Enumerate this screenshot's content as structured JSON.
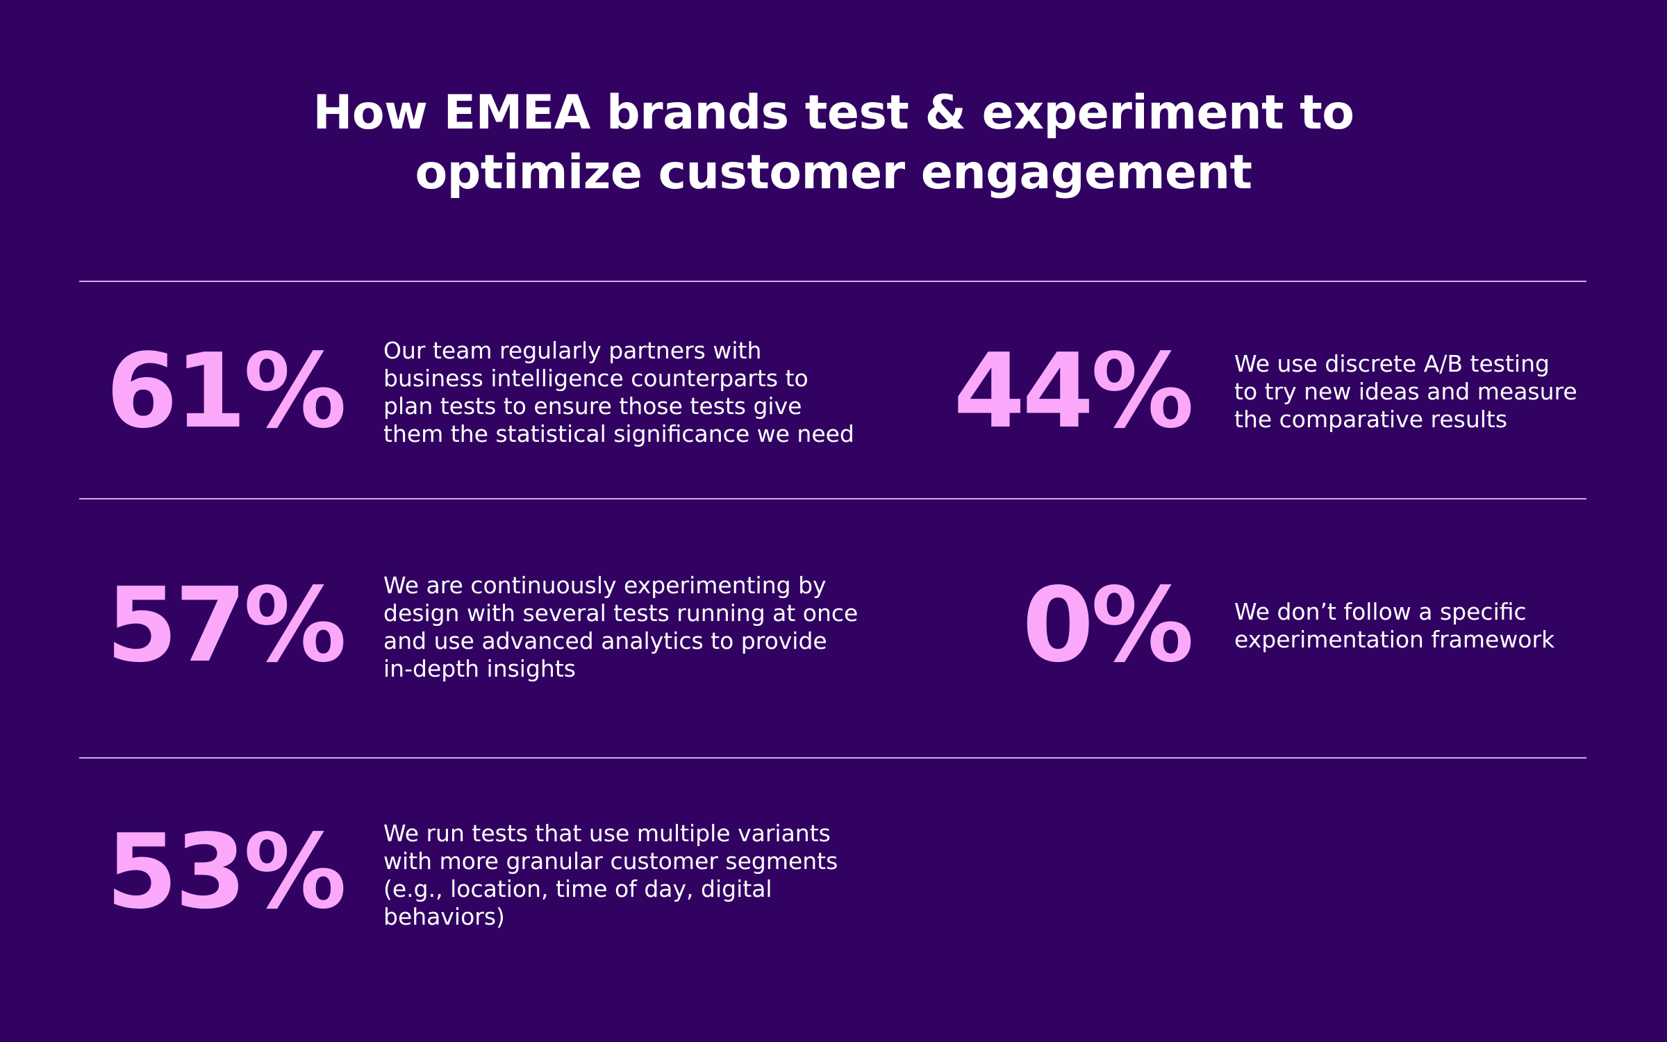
{
  "title": {
    "line1": "How EMEA brands test & experiment to",
    "line2": "optimize customer engagement"
  },
  "accent_color": "#fba8fb",
  "background_color": "#310262",
  "stats": [
    {
      "value": "61%",
      "lines": [
        "Our team regularly partners with",
        "business intelligence counterparts to",
        "plan tests to ensure those tests give",
        "them the statistical significance we need"
      ]
    },
    {
      "value": "44%",
      "lines": [
        "We use discrete A/B testing",
        "to try new ideas and measure",
        "the comparative results"
      ]
    },
    {
      "value": "57%",
      "lines": [
        "We are continuously experimenting by",
        "design with several tests running at once",
        "and use advanced analytics to provide",
        "in-depth insights"
      ]
    },
    {
      "value": "0%",
      "lines": [
        "We don’t follow a specific",
        "experimentation framework"
      ]
    },
    {
      "value": "53%",
      "lines": [
        "We run tests that use multiple variants",
        "with more granular customer segments",
        "(e.g., location, time of day, digital",
        "behaviors)"
      ]
    }
  ]
}
